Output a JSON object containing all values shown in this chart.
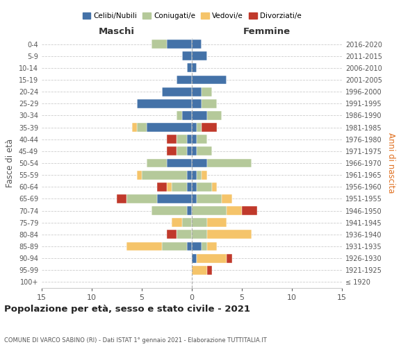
{
  "age_groups": [
    "100+",
    "95-99",
    "90-94",
    "85-89",
    "80-84",
    "75-79",
    "70-74",
    "65-69",
    "60-64",
    "55-59",
    "50-54",
    "45-49",
    "40-44",
    "35-39",
    "30-34",
    "25-29",
    "20-24",
    "15-19",
    "10-14",
    "5-9",
    "0-4"
  ],
  "birth_years": [
    "≤ 1920",
    "1921-1925",
    "1926-1930",
    "1931-1935",
    "1936-1940",
    "1941-1945",
    "1946-1950",
    "1951-1955",
    "1956-1960",
    "1961-1965",
    "1966-1970",
    "1971-1975",
    "1976-1980",
    "1981-1985",
    "1986-1990",
    "1991-1995",
    "1996-2000",
    "2001-2005",
    "2006-2010",
    "2011-2015",
    "2016-2020"
  ],
  "maschi": {
    "celibi": [
      0,
      0,
      0,
      0.5,
      0,
      0,
      0.5,
      3.5,
      0.5,
      0.5,
      2.5,
      0.5,
      0.5,
      4.5,
      1.0,
      5.5,
      3.0,
      1.5,
      0.5,
      1.0,
      2.5
    ],
    "coniugati": [
      0,
      0,
      0,
      2.5,
      1.5,
      1.0,
      3.5,
      3.0,
      1.5,
      4.5,
      2.0,
      1.0,
      1.0,
      1.0,
      0.5,
      0,
      0,
      0,
      0,
      0,
      1.5
    ],
    "vedovi": [
      0,
      0,
      0,
      3.5,
      0,
      1.0,
      0,
      0,
      0.5,
      0.5,
      0,
      0,
      0,
      0.5,
      0,
      0,
      0,
      0,
      0,
      0,
      0
    ],
    "divorziati": [
      0,
      0,
      0,
      0,
      1.0,
      0,
      0,
      1.0,
      1.0,
      0,
      0,
      1.0,
      1.0,
      0,
      0,
      0,
      0,
      0,
      0,
      0,
      0
    ]
  },
  "femmine": {
    "nubili": [
      0,
      0,
      0.5,
      1.0,
      0,
      0,
      0,
      0.5,
      0.5,
      0.5,
      1.5,
      0.5,
      0.5,
      0.5,
      1.5,
      1.0,
      1.0,
      3.5,
      0.5,
      1.5,
      1.0
    ],
    "coniugate": [
      0,
      0,
      0,
      0.5,
      1.5,
      1.5,
      3.5,
      2.5,
      1.5,
      0.5,
      4.5,
      1.5,
      1.0,
      0.5,
      1.5,
      1.5,
      1.0,
      0,
      0,
      0,
      0
    ],
    "vedove": [
      0,
      1.5,
      3.0,
      1.0,
      4.5,
      2.0,
      1.5,
      1.0,
      0.5,
      0.5,
      0,
      0,
      0,
      0,
      0,
      0,
      0,
      0,
      0,
      0,
      0
    ],
    "divorziate": [
      0,
      0.5,
      0.5,
      0,
      0,
      0,
      1.5,
      0,
      0,
      0,
      0,
      0,
      0,
      1.5,
      0,
      0,
      0,
      0,
      0,
      0,
      0
    ]
  },
  "colors": {
    "celibi": "#4472a8",
    "coniugati": "#b5c99a",
    "vedovi": "#f5c46a",
    "divorziati": "#c0392b"
  },
  "xlim": 15,
  "title": "Popolazione per età, sesso e stato civile - 2021",
  "subtitle": "COMUNE DI VARCO SABINO (RI) - Dati ISTAT 1° gennaio 2021 - Elaborazione TUTTITALIA.IT",
  "ylabel_left": "Fasce di età",
  "ylabel_right": "Anni di nascita",
  "xlabel_maschi": "Maschi",
  "xlabel_femmine": "Femmine",
  "legend_labels": [
    "Celibi/Nubili",
    "Coniugati/e",
    "Vedovi/e",
    "Divorziati/e"
  ],
  "background_color": "#ffffff",
  "grid_color": "#cccccc"
}
